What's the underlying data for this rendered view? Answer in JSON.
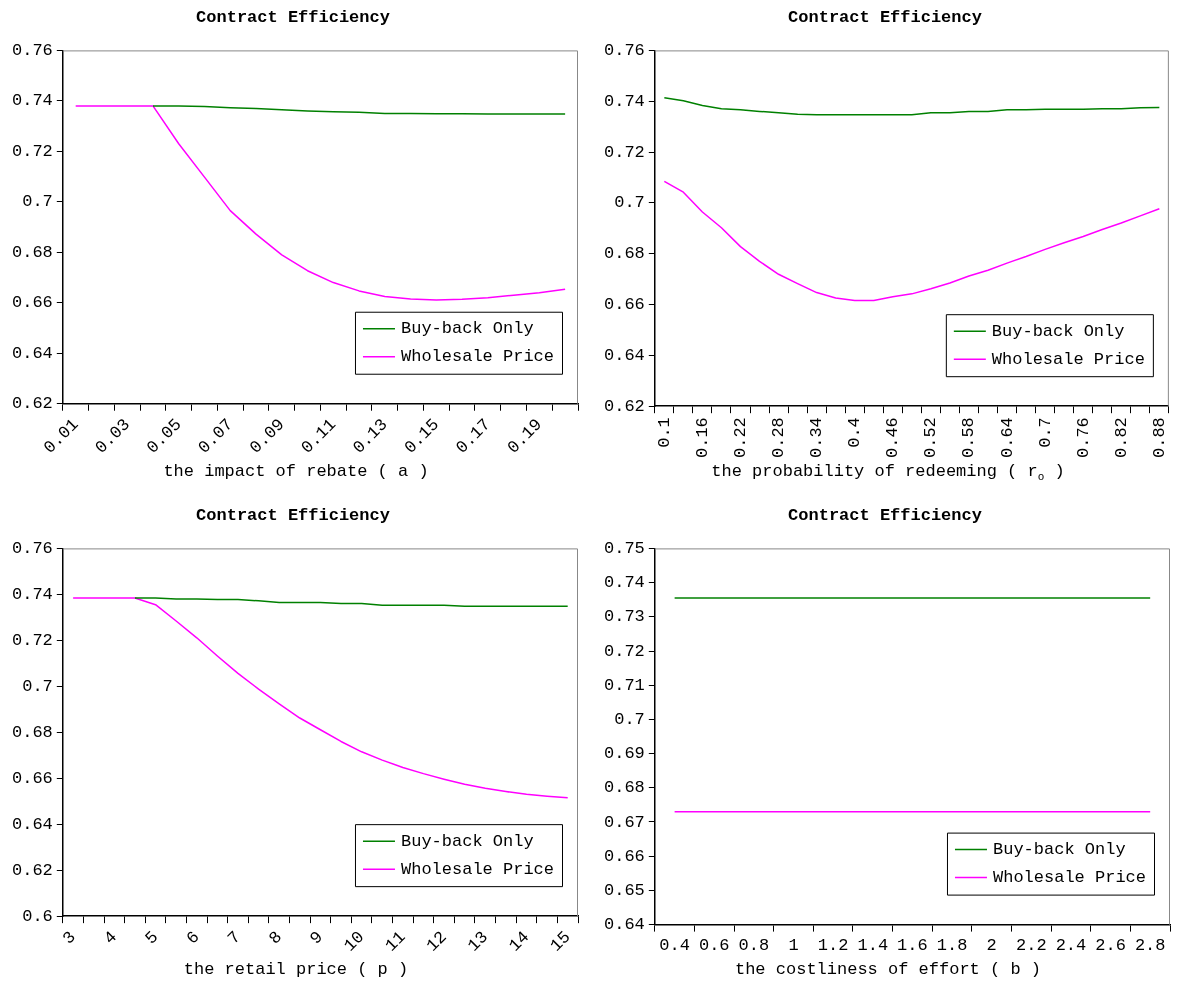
{
  "chart_data": [
    {
      "type": "line",
      "title": "Contract Efficiency",
      "xlabel": "the impact of rebate ( a )",
      "categories": [
        "0.01",
        null,
        "0.03",
        null,
        "0.05",
        null,
        "0.07",
        null,
        "0.09",
        null,
        "0.11",
        null,
        "0.13",
        null,
        "0.15",
        null,
        "0.17",
        null,
        "0.19",
        null
      ],
      "series": [
        {
          "name": "Buy-back Only",
          "color": "#008000",
          "values": [
            null,
            null,
            null,
            0.738,
            0.738,
            0.7378,
            0.7373,
            0.737,
            0.7365,
            0.736,
            0.7357,
            0.7355,
            0.735,
            0.735,
            0.7349,
            0.7349,
            0.7348,
            0.7348,
            0.7348,
            0.7348
          ]
        },
        {
          "name": "Wholesale Price",
          "color": "#ff00ff",
          "values": [
            0.738,
            0.738,
            0.738,
            0.738,
            0.723,
            0.7098,
            0.6965,
            0.6872,
            0.679,
            0.6727,
            0.668,
            0.6647,
            0.6625,
            0.6615,
            0.6611,
            0.6614,
            0.662,
            0.663,
            0.664,
            0.6654
          ]
        }
      ],
      "ylim": [
        0.62,
        0.76
      ],
      "yticks": [
        0.62,
        0.64,
        0.66,
        0.68,
        0.7,
        0.72,
        0.74,
        0.76
      ],
      "grid": false,
      "legend": "bottom right",
      "marker": "none"
    },
    {
      "type": "line",
      "title": "Contract Efficiency",
      "xlabel": "the probability of redeeming ( r$_{o}$ )",
      "categories": [
        "0.1",
        null,
        "0.16",
        null,
        "0.22",
        null,
        "0.28",
        null,
        "0.34",
        null,
        "0.4",
        null,
        "0.46",
        null,
        "0.52",
        null,
        "0.58",
        null,
        "0.64",
        null,
        "0.7",
        null,
        "0.76",
        null,
        "0.82",
        null,
        "0.88"
      ],
      "series": [
        {
          "name": "Buy-back Only",
          "color": "#008000",
          "values": [
            0.7414,
            0.7402,
            0.7383,
            0.737,
            0.7366,
            0.736,
            0.7355,
            0.7349,
            0.7347,
            0.7347,
            0.7347,
            0.7347,
            0.7347,
            0.7347,
            0.7355,
            0.7355,
            0.736,
            0.736,
            0.7366,
            0.7366,
            0.7368,
            0.7368,
            0.7368,
            0.737,
            0.737,
            0.7374,
            0.7375
          ]
        },
        {
          "name": "Wholesale Price",
          "color": "#ff00ff",
          "values": [
            0.7085,
            0.7042,
            0.6964,
            0.6902,
            0.6828,
            0.677,
            0.6719,
            0.6682,
            0.6647,
            0.6626,
            0.6616,
            0.6616,
            0.6631,
            0.6642,
            0.6662,
            0.6685,
            0.6712,
            0.6735,
            0.6763,
            0.6789,
            0.6817,
            0.6843,
            0.6868,
            0.6895,
            0.6921,
            0.6949,
            0.6977
          ]
        }
      ],
      "ylim": [
        0.62,
        0.76
      ],
      "yticks": [
        0.62,
        0.64,
        0.66,
        0.68,
        0.7,
        0.72,
        0.74,
        0.76
      ],
      "grid": false,
      "legend": "bottom right",
      "marker": "none"
    },
    {
      "type": "line",
      "title": "Contract Efficiency",
      "xlabel": "the retail price ( p )",
      "categories": [
        "3",
        null,
        "4",
        null,
        "5",
        null,
        "6",
        null,
        "7",
        null,
        "8",
        null,
        "9",
        null,
        "10",
        null,
        "11",
        null,
        "12",
        null,
        "13",
        null,
        "14",
        null,
        "15"
      ],
      "series": [
        {
          "name": "Buy-back Only",
          "color": "#008000",
          "values": [
            null,
            null,
            null,
            0.7384,
            0.7384,
            0.738,
            0.738,
            0.7378,
            0.7378,
            0.7372,
            0.7365,
            0.7365,
            0.7365,
            0.736,
            0.736,
            0.7353,
            0.7353,
            0.7353,
            0.7353,
            0.7348,
            0.7348,
            0.7348,
            0.7348,
            0.7348,
            0.7348
          ]
        },
        {
          "name": "Wholesale Price",
          "color": "#ff00ff",
          "values": [
            0.7384,
            0.7384,
            0.7384,
            0.7384,
            0.7355,
            0.7284,
            0.7211,
            0.7132,
            0.7056,
            0.6988,
            0.6924,
            0.6862,
            0.6811,
            0.676,
            0.6715,
            0.6679,
            0.6647,
            0.662,
            0.6596,
            0.6574,
            0.6556,
            0.6542,
            0.653,
            0.6522,
            0.6515
          ]
        }
      ],
      "ylim": [
        0.6,
        0.76
      ],
      "yticks": [
        0.6,
        0.62,
        0.64,
        0.66,
        0.68,
        0.7,
        0.72,
        0.74,
        0.76
      ],
      "grid": false,
      "legend": "bottom right",
      "marker": "none"
    },
    {
      "type": "line",
      "title": "Contract Efficiency",
      "xlabel": "the costliness of effort ( b )",
      "categories": [
        "0.4",
        "0.6",
        "0.8",
        "1",
        "1.2",
        "1.4",
        "1.6",
        "1.8",
        "2",
        "2.2",
        "2.4",
        "2.6",
        "2.8"
      ],
      "series": [
        {
          "name": "Buy-back Only",
          "color": "#008000",
          "values": [
            0.7355,
            0.7355,
            0.7355,
            0.7355,
            0.7355,
            0.7355,
            0.7355,
            0.7355,
            0.7355,
            0.7355,
            0.7355,
            0.7355,
            0.7355
          ]
        },
        {
          "name": "Wholesale Price",
          "color": "#ff00ff",
          "values": [
            0.673,
            0.673,
            0.673,
            0.673,
            0.673,
            0.673,
            0.673,
            0.673,
            0.673,
            0.673,
            0.673,
            0.673,
            0.673
          ]
        }
      ],
      "ylim": [
        0.64,
        0.75
      ],
      "yticks": [
        0.64,
        0.65,
        0.66,
        0.67,
        0.68,
        0.69,
        0.7,
        0.71,
        0.72,
        0.73,
        0.74,
        0.75
      ],
      "grid": false,
      "legend": "bottom right",
      "marker": "none"
    }
  ]
}
